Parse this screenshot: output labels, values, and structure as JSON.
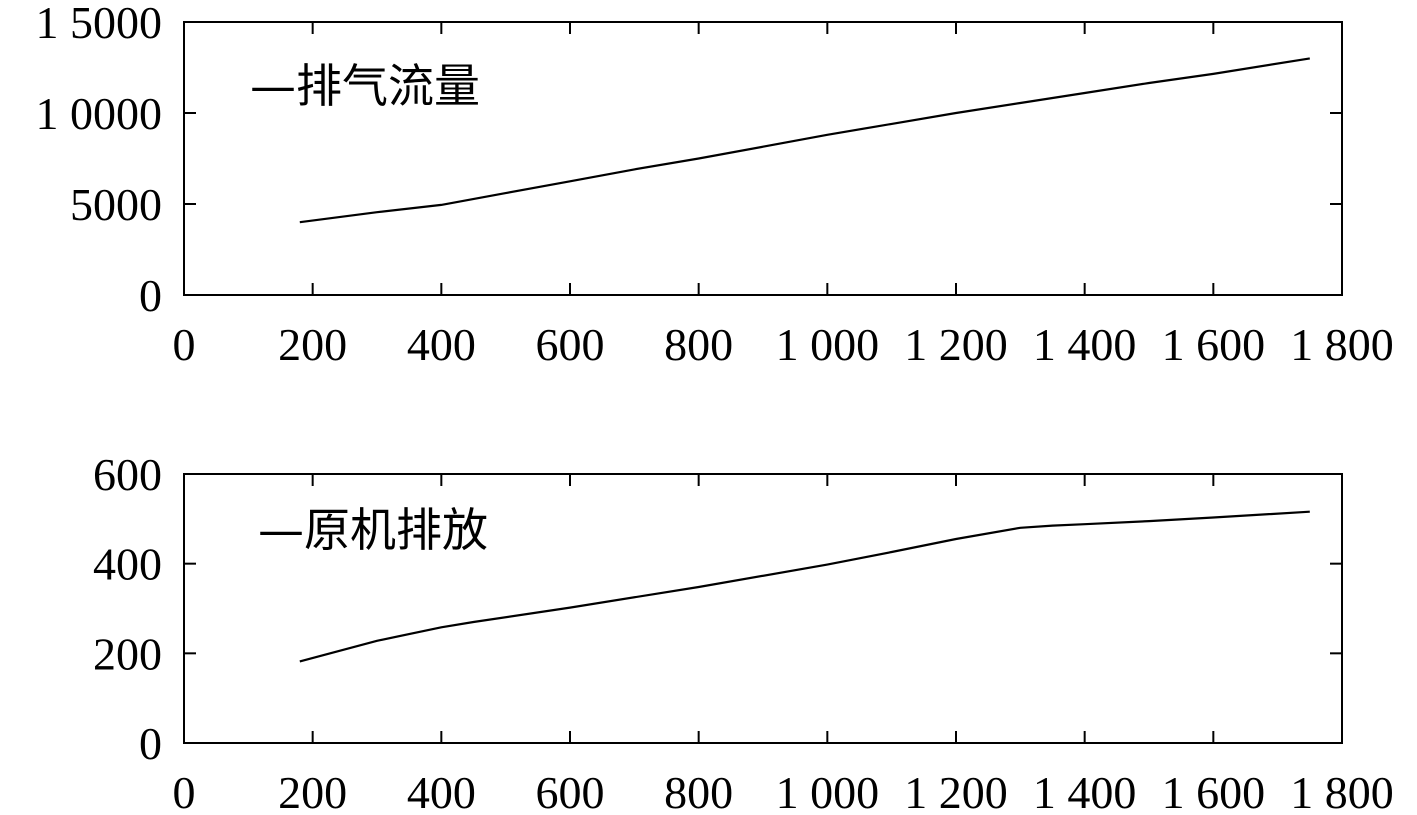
{
  "chart_data": [
    {
      "type": "line",
      "x_ticks": [
        0,
        200,
        400,
        600,
        800,
        1000,
        1200,
        1400,
        1600,
        1800
      ],
      "x_tick_labels": [
        "0",
        "200",
        "400",
        "600",
        "800",
        "1 000",
        "1 200",
        "1 400",
        "1 600",
        "1 800"
      ],
      "y_ticks": [
        0,
        5000,
        10000,
        15000
      ],
      "y_tick_labels": [
        "0",
        "5000",
        "1 0000",
        "1 5000"
      ],
      "xlim": [
        0,
        1800
      ],
      "ylim": [
        0,
        15000
      ],
      "legend": "—排气流量",
      "legend_position": "top-left",
      "grid": false,
      "series": [
        {
          "name": "排气流量",
          "color": "#000000",
          "x": [
            180,
            300,
            400,
            500,
            600,
            700,
            800,
            900,
            1000,
            1100,
            1200,
            1300,
            1400,
            1500,
            1600,
            1750
          ],
          "values": [
            4000,
            4550,
            4950,
            5600,
            6250,
            6900,
            7500,
            8150,
            8800,
            9400,
            10000,
            10550,
            11100,
            11650,
            12150,
            13000
          ]
        }
      ]
    },
    {
      "type": "line",
      "x_ticks": [
        0,
        200,
        400,
        600,
        800,
        1000,
        1200,
        1400,
        1600,
        1800
      ],
      "x_tick_labels": [
        "0",
        "200",
        "400",
        "600",
        "800",
        "1 000",
        "1 200",
        "1 400",
        "1 600",
        "1 800"
      ],
      "y_ticks": [
        0,
        200,
        400,
        600
      ],
      "y_tick_labels": [
        "0",
        "200",
        "400",
        "600"
      ],
      "xlim": [
        0,
        1800
      ],
      "ylim": [
        0,
        600
      ],
      "legend": "—原机排放",
      "legend_position": "top-left",
      "grid": false,
      "series": [
        {
          "name": "原机排放",
          "color": "#000000",
          "x": [
            180,
            300,
            400,
            450,
            600,
            800,
            1000,
            1100,
            1200,
            1300,
            1350,
            1400,
            1500,
            1600,
            1750
          ],
          "values": [
            182,
            228,
            258,
            270,
            302,
            348,
            398,
            426,
            455,
            480,
            485,
            488,
            495,
            503,
            516
          ]
        }
      ]
    }
  ]
}
